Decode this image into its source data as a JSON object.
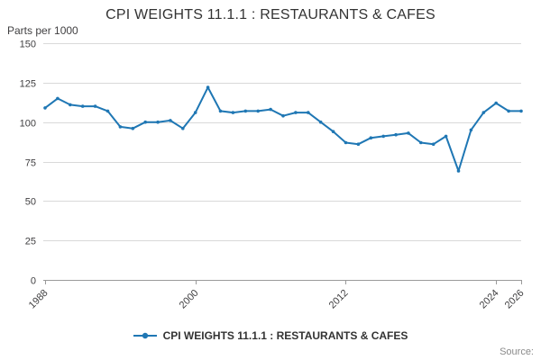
{
  "header": {
    "title": "CPI WEIGHTS 11.1.1 : RESTAURANTS & CAFES"
  },
  "footer": {
    "source": "Source:"
  },
  "chart_data": {
    "type": "line",
    "title": "CPI WEIGHTS 11.1.1 : RESTAURANTS & CAFES",
    "xlabel": "",
    "ylabel": "Parts per 1000",
    "ylim": [
      0,
      150
    ],
    "yticks": [
      0,
      25,
      50,
      75,
      100,
      125,
      150
    ],
    "xticks": [
      1988,
      2000,
      2012,
      2024,
      2026
    ],
    "grid": true,
    "legend_position": "bottom",
    "x": [
      1988,
      1989,
      1990,
      1991,
      1992,
      1993,
      1994,
      1995,
      1996,
      1997,
      1998,
      1999,
      2000,
      2001,
      2002,
      2003,
      2004,
      2005,
      2006,
      2007,
      2008,
      2009,
      2010,
      2011,
      2012,
      2013,
      2014,
      2015,
      2016,
      2017,
      2018,
      2019,
      2020,
      2021,
      2022,
      2023,
      2024,
      2025,
      2026
    ],
    "series": [
      {
        "name": "CPI WEIGHTS 11.1.1 : RESTAURANTS & CAFES",
        "color": "#1f77b4",
        "values": [
          109,
          115,
          111,
          110,
          110,
          107,
          97,
          96,
          100,
          100,
          101,
          96,
          106,
          122,
          107,
          106,
          107,
          107,
          108,
          104,
          106,
          106,
          100,
          94,
          87,
          86,
          90,
          91,
          92,
          93,
          87,
          86,
          91,
          69,
          95,
          106,
          112,
          107,
          107
        ]
      }
    ],
    "axis_color": "#9a9a9a",
    "gridline_color": "#d9d9d9",
    "tick_label_color": "#414042"
  }
}
